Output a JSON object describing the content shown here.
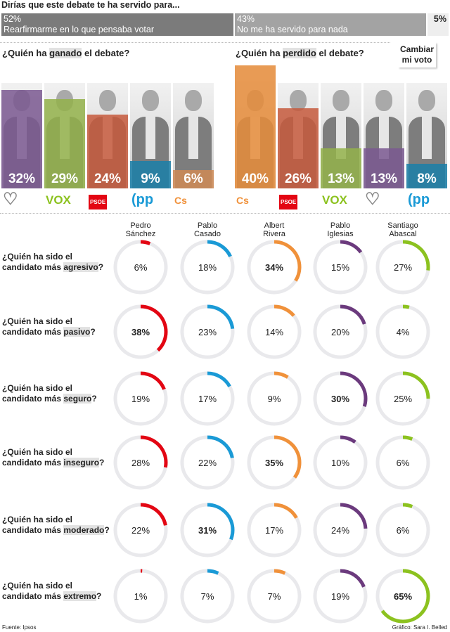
{
  "title": "Dirías que este debate te ha servido para...",
  "top_bar": [
    {
      "pct": "52%",
      "label": "Rearfirmarme en lo que pensaba votar",
      "value": 52,
      "color": "#7b7b7b"
    },
    {
      "pct": "43%",
      "label": "No me ha servido para nada",
      "value": 43,
      "color": "#a3a3a3"
    },
    {
      "pct": "5%",
      "label": "",
      "value": 5,
      "color": "#eeeeee"
    }
  ],
  "cambiar": "Cambiar mi voto",
  "won": {
    "q_pre": "¿Quién ha ",
    "q_hl": "ganado",
    "q_post": " el debate?",
    "bars": [
      {
        "party": "Podemos",
        "pct": "32%",
        "value": 32,
        "color": "#7a5890",
        "logo": "heart-logo"
      },
      {
        "party": "VOX",
        "pct": "29%",
        "value": 29,
        "color": "#93b24a",
        "logo": "VOX"
      },
      {
        "party": "PSOE",
        "pct": "24%",
        "value": 24,
        "color": "#c5593c",
        "logo": "PSOE"
      },
      {
        "party": "PP",
        "pct": "9%",
        "value": 9,
        "color": "#1a7fa8",
        "logo": "pp"
      },
      {
        "party": "Cs",
        "pct": "6%",
        "value": 6,
        "color": "#cf8a55",
        "logo": "Cs"
      }
    ]
  },
  "lost": {
    "q_pre": "¿Quién ha ",
    "q_hl": "perdido",
    "q_post": " el debate?",
    "bars": [
      {
        "party": "Cs",
        "pct": "40%",
        "value": 40,
        "color": "#e68c3a",
        "logo": "Cs"
      },
      {
        "party": "PSOE",
        "pct": "26%",
        "value": 26,
        "color": "#c5593c",
        "logo": "PSOE"
      },
      {
        "party": "VOX",
        "pct": "13%",
        "value": 13,
        "color": "#93b24a",
        "logo": "VOX"
      },
      {
        "party": "Podemos",
        "pct": "13%",
        "value": 13,
        "color": "#7a5890",
        "logo": "heart-logo"
      },
      {
        "party": "PP",
        "pct": "8%",
        "value": 8,
        "color": "#1a7fa8",
        "logo": "pp"
      }
    ]
  },
  "chart_data": {
    "type": "donut-grid",
    "candidates": [
      {
        "name": "Pedro Sánchez",
        "l1": "Pedro",
        "l2": "Sánchez",
        "color": "#e30613"
      },
      {
        "name": "Pablo Casado",
        "l1": "Pablo",
        "l2": "Casado",
        "color": "#1a9ad6"
      },
      {
        "name": "Albert Rivera",
        "l1": "Albert",
        "l2": "Rivera",
        "color": "#f0913a"
      },
      {
        "name": "Pablo Iglesias",
        "l1": "Pablo",
        "l2": "Iglesias",
        "color": "#6b3a7d"
      },
      {
        "name": "Santiago Abascal",
        "l1": "Santiago",
        "l2": "Abascal",
        "color": "#8cc21f"
      }
    ],
    "rows": [
      {
        "l1": "¿Quién ha sido el",
        "l2": "candidato más ",
        "hl": "agresivo",
        "end": "?",
        "values": [
          6,
          18,
          34,
          15,
          27
        ]
      },
      {
        "l1": "¿Quién ha sido el",
        "l2": "candidato más ",
        "hl": "pasivo",
        "end": "?",
        "values": [
          38,
          23,
          14,
          20,
          4
        ]
      },
      {
        "l1": "¿Quién ha sido el",
        "l2": "candidato más ",
        "hl": "seguro",
        "end": "?",
        "values": [
          19,
          17,
          9,
          30,
          25
        ]
      },
      {
        "l1": "¿Quién ha sido el",
        "l2": "candidato más ",
        "hl": "inseguro",
        "end": "?",
        "values": [
          28,
          22,
          35,
          10,
          6
        ]
      },
      {
        "l1": "¿Quién ha sido el",
        "l2": "candidato más ",
        "hl": "moderado",
        "end": "?",
        "values": [
          22,
          31,
          17,
          24,
          6
        ]
      },
      {
        "l1": "¿Quién ha sido el",
        "l2": "candidato más ",
        "hl": "extremo",
        "end": "?",
        "values": [
          1,
          7,
          7,
          19,
          65
        ]
      }
    ]
  },
  "footer": {
    "source": "Fuente: Ipsos",
    "credit": "Gráfico: Sara I. Belled"
  }
}
